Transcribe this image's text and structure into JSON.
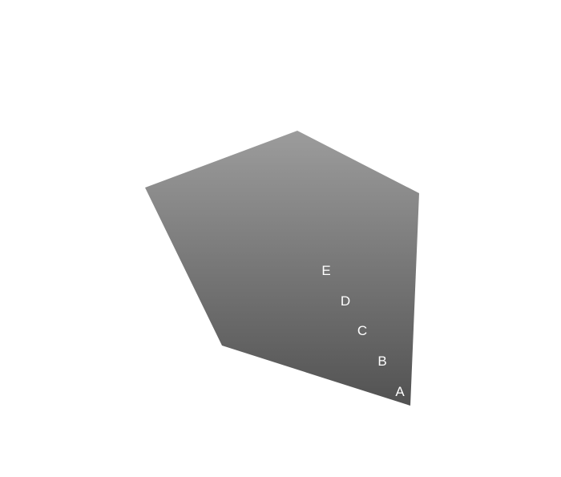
{
  "shape": {
    "kind": "pentagon",
    "fill_gradient_top": "#9c9c9c",
    "fill_gradient_bottom": "#525252"
  },
  "labels": [
    {
      "id": "A",
      "text": "A"
    },
    {
      "id": "B",
      "text": "B"
    },
    {
      "id": "C",
      "text": "C"
    },
    {
      "id": "D",
      "text": "D"
    },
    {
      "id": "E",
      "text": "E"
    }
  ]
}
